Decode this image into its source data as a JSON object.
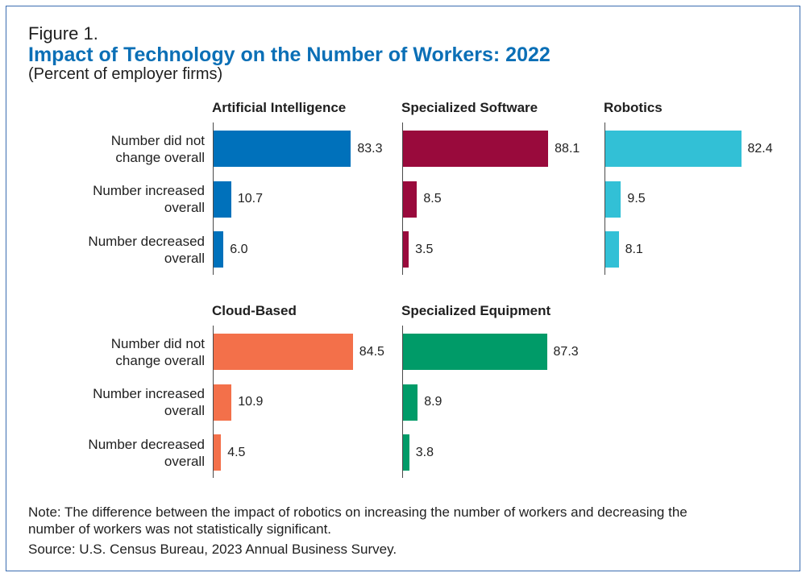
{
  "figure": {
    "label": "Figure 1.",
    "note": "Note: The difference between the impact of robotics on increasing the number of workers and decreasing the number of workers was not statistically significant.",
    "source": "Source: U.S. Census Bureau, 2023 Annual Business Survey.",
    "title_color": "#0b6fb6",
    "border_color": "#3a6cb0"
  },
  "chart_data": {
    "type": "bar",
    "orientation": "horizontal",
    "title": "Impact of Technology on the Number of Workers: 2022",
    "subtitle": "(Percent of employer firms)",
    "categories": [
      "Number did not change overall",
      "Number increased overall",
      "Number decreased overall"
    ],
    "xlim": [
      0,
      100
    ],
    "grid": false,
    "panels": [
      {
        "title": "Artificial Intelligence",
        "color": "#0071bb",
        "values": [
          83.3,
          10.7,
          6.0
        ]
      },
      {
        "title": "Specialized Software",
        "color": "#990a3c",
        "values": [
          88.1,
          8.5,
          3.5
        ]
      },
      {
        "title": "Robotics",
        "color": "#32c0d6",
        "values": [
          82.4,
          9.5,
          8.1
        ]
      },
      {
        "title": "Cloud-Based",
        "color": "#f3704a",
        "values": [
          84.5,
          10.9,
          4.5
        ]
      },
      {
        "title": "Specialized Equipment",
        "color": "#009b68",
        "values": [
          87.3,
          8.9,
          3.8
        ]
      }
    ]
  }
}
